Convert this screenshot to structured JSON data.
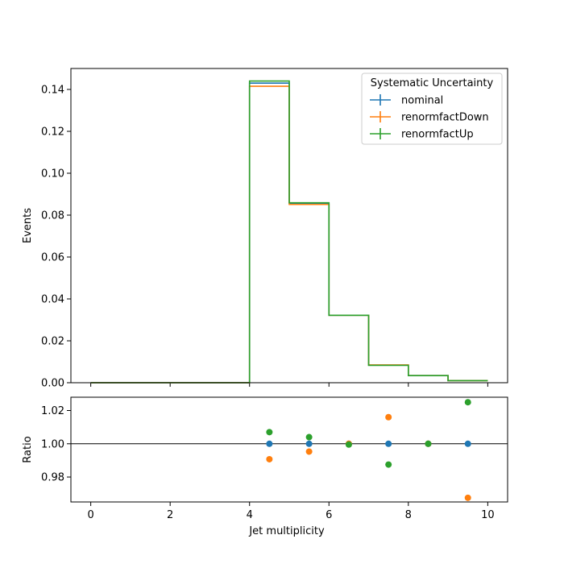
{
  "chart_data": [
    {
      "type": "line",
      "drawstyle": "step",
      "xlabel": "",
      "ylabel": "Events",
      "xlim": [
        -0.5,
        10.5
      ],
      "ylim": [
        0,
        0.15
      ],
      "x_ticks": [
        "0",
        "2",
        "4",
        "6",
        "8",
        "10"
      ],
      "y_ticks": [
        "0.00",
        "0.02",
        "0.04",
        "0.06",
        "0.08",
        "0.10",
        "0.12",
        "0.14"
      ],
      "bin_edges": [
        0,
        1,
        2,
        3,
        4,
        5,
        6,
        7,
        8,
        9,
        10
      ],
      "legend": {
        "title": "Systematic Uncertainty",
        "placement": "upper right"
      },
      "series": [
        {
          "name": "nominal",
          "color": "#1f77b4",
          "values": [
            0,
            0,
            0,
            0,
            0.143,
            0.0855,
            0.0322,
            0.0084,
            0.0034,
            0.001
          ]
        },
        {
          "name": "renormfactDown",
          "color": "#ff7f0e",
          "values": [
            0,
            0,
            0,
            0,
            0.1415,
            0.0851,
            0.0322,
            0.0085,
            0.0034,
            0.001
          ]
        },
        {
          "name": "renormfactUp",
          "color": "#2ca02c",
          "values": [
            0,
            0,
            0,
            0,
            0.144,
            0.0859,
            0.0322,
            0.0083,
            0.0034,
            0.001
          ]
        }
      ]
    },
    {
      "type": "scatter",
      "xlabel": "Jet multiplicity",
      "ylabel": "Ratio",
      "xlim": [
        -0.5,
        10.5
      ],
      "ylim": [
        0.965,
        1.028
      ],
      "reference_line": 1.0,
      "x_ticks": [
        "0",
        "2",
        "4",
        "6",
        "8",
        "10"
      ],
      "y_ticks": [
        "0.98",
        "1.00",
        "1.02"
      ],
      "series": [
        {
          "name": "nominal",
          "color": "#1f77b4",
          "x": [
            4.5,
            5.5,
            6.5,
            7.5,
            8.5,
            9.5
          ],
          "y": [
            1.0,
            1.0,
            1.0,
            1.0,
            1.0,
            1.0
          ]
        },
        {
          "name": "renormfactDown",
          "color": "#ff7f0e",
          "x": [
            4.5,
            5.5,
            6.5,
            7.5,
            8.5,
            9.5
          ],
          "y": [
            0.9907,
            0.9953,
            1.0,
            1.016,
            1.0,
            0.9675
          ]
        },
        {
          "name": "renormfactUp",
          "color": "#2ca02c",
          "x": [
            4.5,
            5.5,
            6.5,
            7.5,
            8.5,
            9.5
          ],
          "y": [
            1.007,
            1.004,
            0.9995,
            0.9875,
            1.0,
            1.025
          ]
        }
      ]
    }
  ]
}
